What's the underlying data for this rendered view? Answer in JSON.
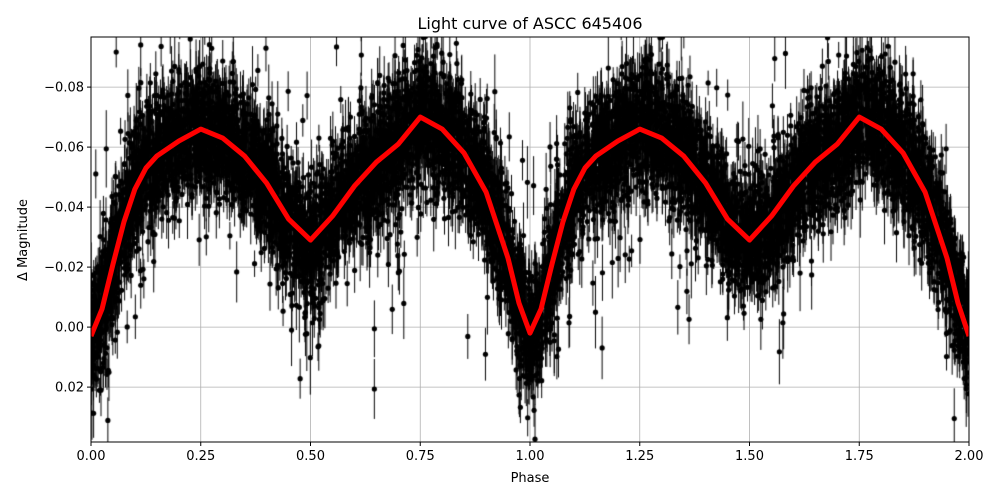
{
  "chart_data": {
    "type": "scatter",
    "title": "Light curve of ASCC 645406",
    "xlabel": "Phase",
    "ylabel": "Δ Magnitude",
    "xlim": [
      0,
      2.0
    ],
    "ylim": [
      0.0383,
      -0.0967
    ],
    "y_inverted": true,
    "grid": true,
    "xticks": [
      "0.00",
      "0.25",
      "0.50",
      "0.75",
      "1.00",
      "1.25",
      "1.50",
      "1.75",
      "2.00"
    ],
    "xtick_values": [
      0,
      0.25,
      0.5,
      0.75,
      1.0,
      1.25,
      1.5,
      1.75,
      2.0
    ],
    "yticks": [
      "−0.08",
      "−0.06",
      "−0.04",
      "−0.02",
      "0.00",
      "0.02"
    ],
    "ytick_values": [
      -0.08,
      -0.06,
      -0.04,
      -0.02,
      0.0,
      0.02
    ],
    "series": [
      {
        "kind": "observations with error bars",
        "color": "#000000"
      },
      {
        "kind": "model curve",
        "color": "#ff0000",
        "x": [
          0,
          0.025,
          0.05,
          0.075,
          0.1,
          0.125,
          0.15,
          0.2,
          0.25,
          0.3,
          0.35,
          0.4,
          0.45,
          0.5,
          0.55,
          0.6,
          0.65,
          0.7,
          0.75,
          0.8,
          0.85,
          0.9,
          0.95,
          0.975,
          1.0,
          1.025,
          1.05,
          1.075,
          1.1,
          1.125,
          1.15,
          1.2,
          1.25,
          1.3,
          1.35,
          1.4,
          1.45,
          1.5,
          1.55,
          1.6,
          1.65,
          1.7,
          1.75,
          1.8,
          1.85,
          1.9,
          1.95,
          1.975,
          2.0
        ],
        "y": [
          0.003,
          -0.006,
          -0.021,
          -0.035,
          -0.046,
          -0.053,
          -0.057,
          -0.062,
          -0.066,
          -0.063,
          -0.057,
          -0.048,
          -0.036,
          -0.029,
          -0.037,
          -0.047,
          -0.055,
          -0.061,
          -0.07,
          -0.066,
          -0.058,
          -0.045,
          -0.023,
          -0.008,
          0.002,
          -0.006,
          -0.021,
          -0.035,
          -0.046,
          -0.053,
          -0.057,
          -0.062,
          -0.066,
          -0.063,
          -0.057,
          -0.048,
          -0.036,
          -0.029,
          -0.037,
          -0.047,
          -0.055,
          -0.061,
          -0.07,
          -0.066,
          -0.058,
          -0.045,
          -0.023,
          -0.008,
          0.003
        ]
      }
    ]
  }
}
